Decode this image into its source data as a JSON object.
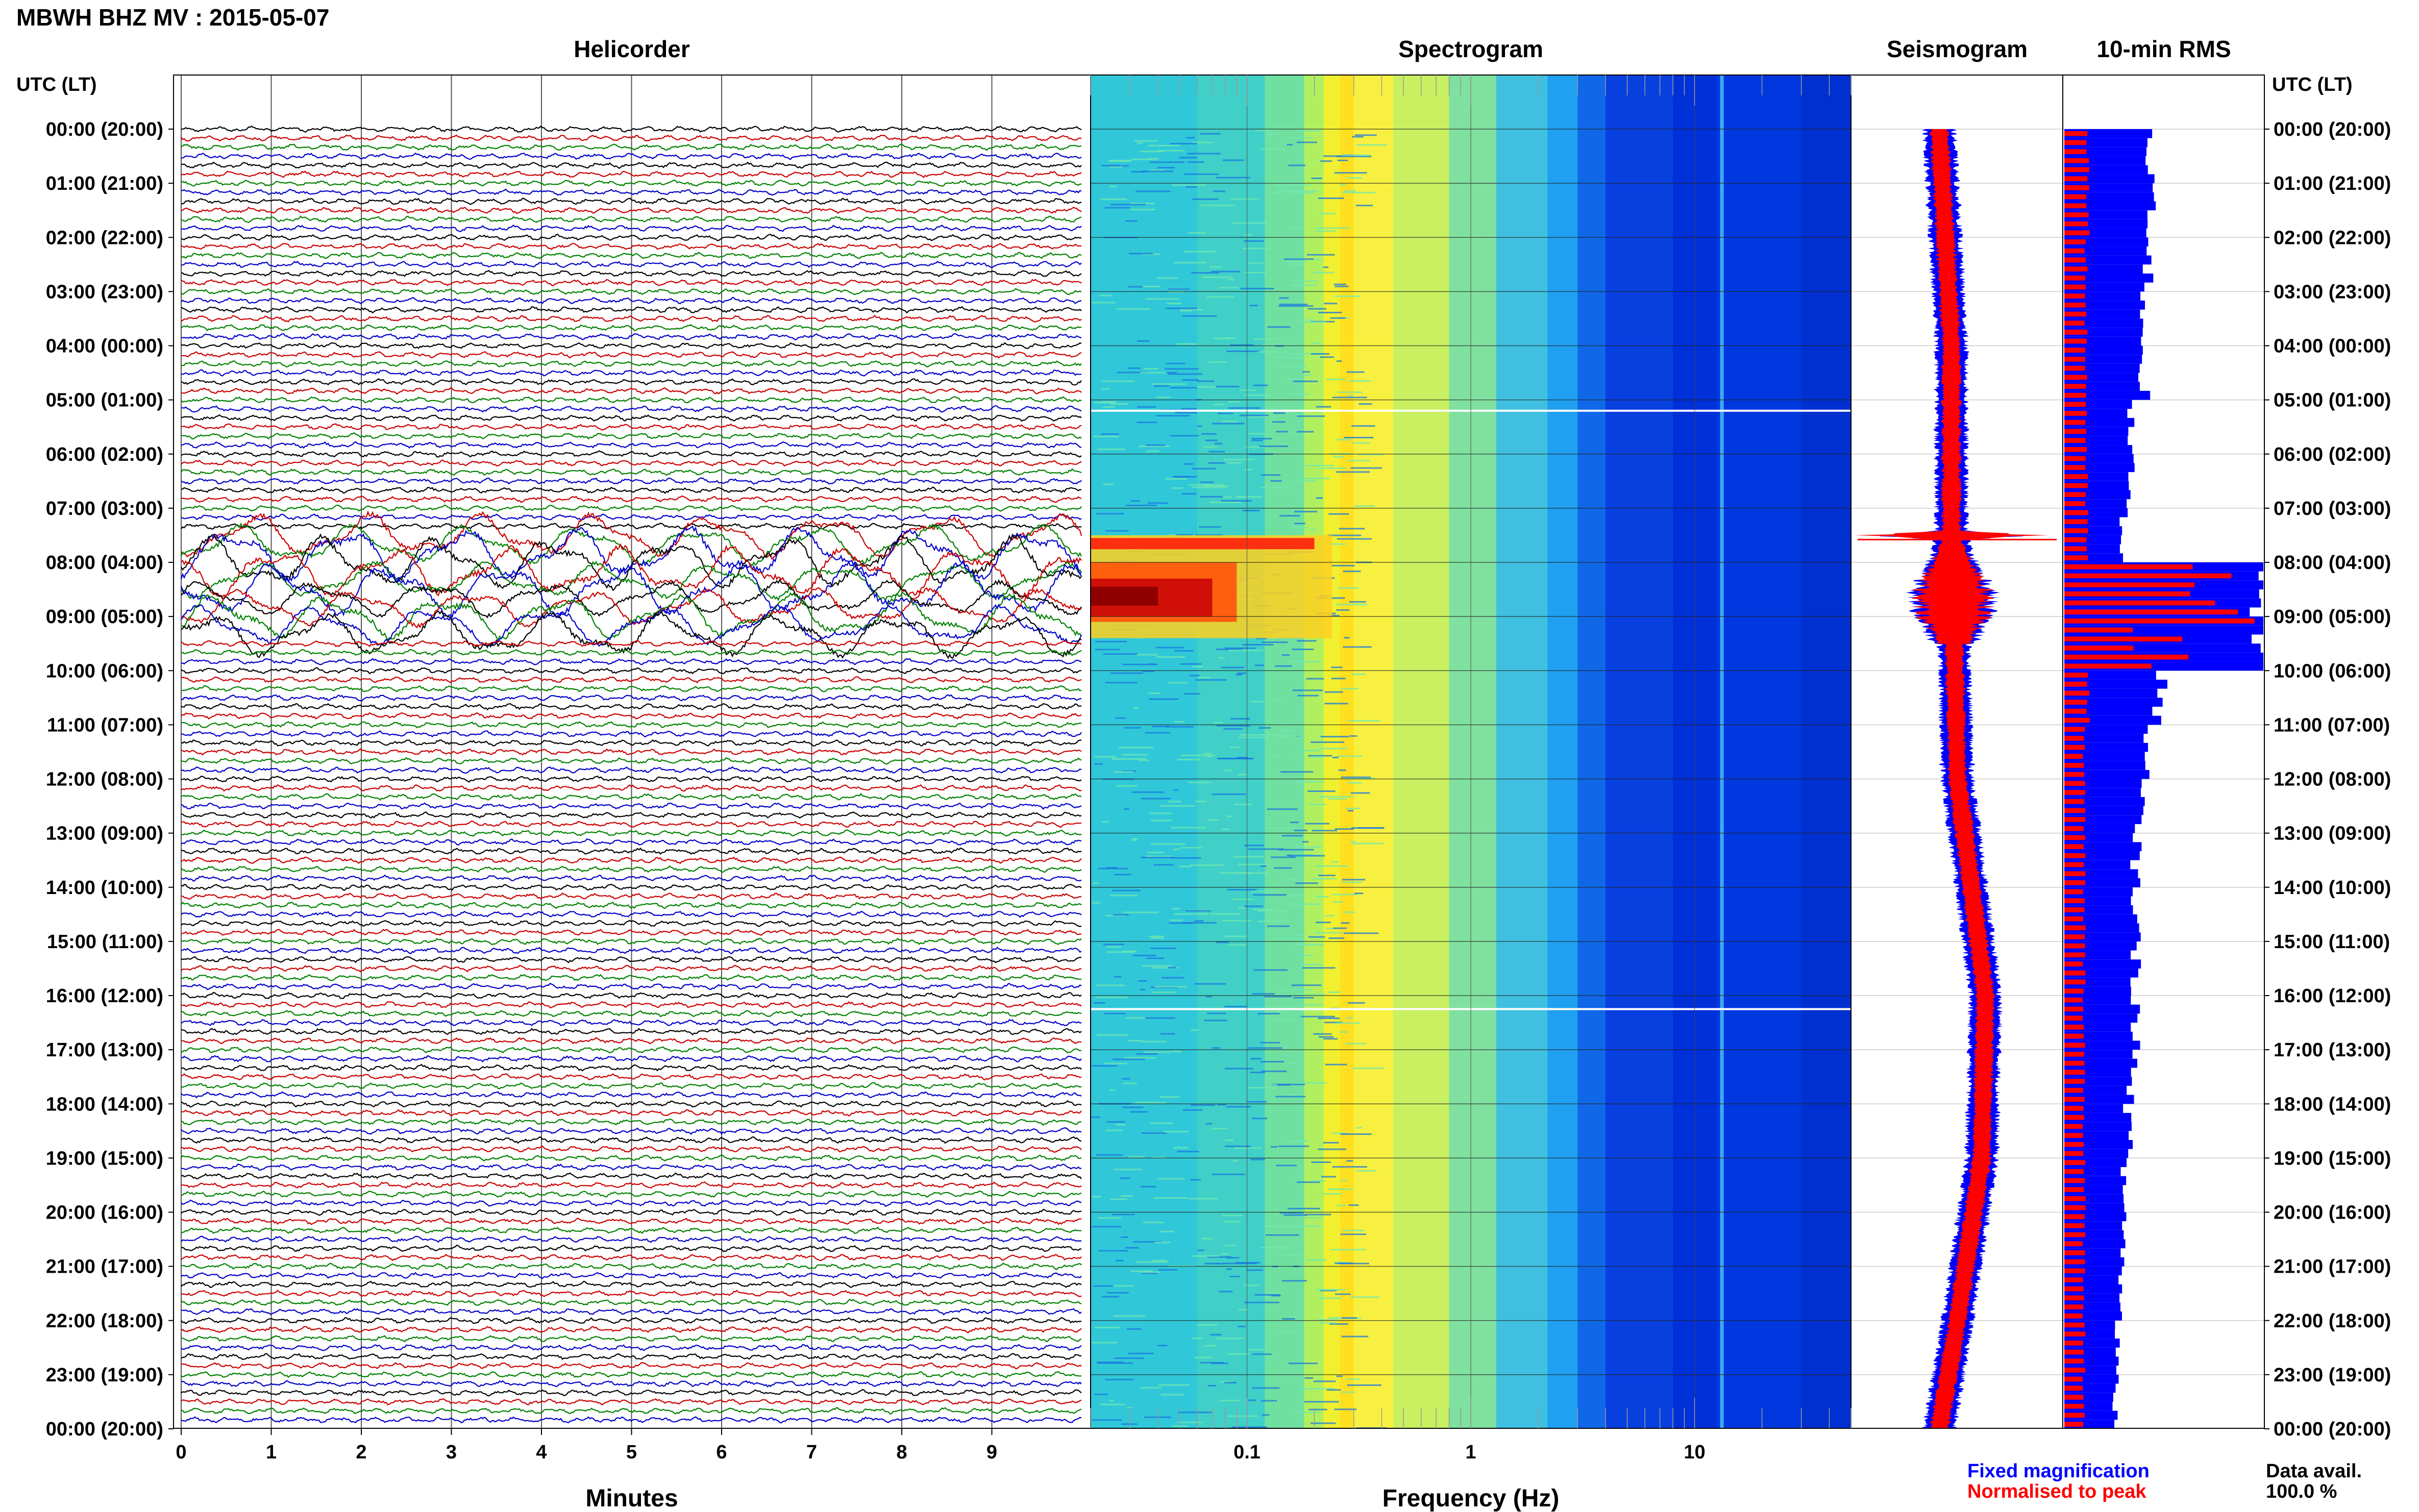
{
  "header": {
    "title": "MBWH BHZ MV : 2015-05-07",
    "utc_label_left": "UTC (LT)",
    "utc_label_right": "UTC (LT)"
  },
  "panels": {
    "helicorder": "Helicorder",
    "spectrogram": "Spectrogram",
    "seismogram": "Seismogram",
    "rms": "10-min RMS"
  },
  "axes": {
    "minutes_label": "Minutes",
    "frequency_label": "Frequency (Hz)"
  },
  "legend": {
    "fixed": "Fixed magnification",
    "normalised": "Normalised to peak"
  },
  "data_avail": {
    "label": "Data avail.",
    "value": "100.0 %"
  },
  "colors": {
    "trace_cycle": [
      "#000000",
      "#cc0000",
      "#008000",
      "#0000cc"
    ],
    "fixed": "#0000ff",
    "normalised": "#ff0000"
  },
  "chart_data": [
    {
      "type": "line",
      "panel": "helicorder",
      "title": "Helicorder",
      "xlabel": "Minutes",
      "x_ticks": [
        "0",
        "1",
        "2",
        "3",
        "4",
        "5",
        "6",
        "7",
        "8",
        "9"
      ],
      "xlim": [
        0,
        10
      ],
      "rows_per_hour": 6,
      "hours_shown": 24,
      "y_tick_labels": [
        "00:00 (20:00)",
        "01:00 (21:00)",
        "02:00 (22:00)",
        "03:00 (23:00)",
        "04:00 (00:00)",
        "05:00 (01:00)",
        "06:00 (02:00)",
        "07:00 (03:00)",
        "08:00 (04:00)",
        "09:00 (05:00)",
        "10:00 (06:00)",
        "11:00 (07:00)",
        "12:00 (08:00)",
        "13:00 (09:00)",
        "14:00 (10:00)",
        "15:00 (11:00)",
        "16:00 (12:00)",
        "17:00 (13:00)",
        "18:00 (14:00)",
        "19:00 (15:00)",
        "20:00 (16:00)",
        "21:00 (17:00)",
        "22:00 (18:00)",
        "23:00 (19:00)",
        "00:00 (20:00)"
      ],
      "event_window_utc_hours": [
        7.5,
        9.4
      ]
    },
    {
      "type": "heatmap",
      "panel": "spectrogram",
      "title": "Spectrogram",
      "xlabel": "Frequency (Hz)",
      "x_scale": "log",
      "xlim": [
        0.02,
        50
      ],
      "x_ticks": [
        "0.1",
        "1",
        "10"
      ],
      "ridge_frequencies_hz": [
        0.25,
        13
      ],
      "event_low_freq_band_hz": [
        0.02,
        0.2
      ],
      "gaps_utc_hours": [
        5.2,
        16.25
      ]
    },
    {
      "type": "line",
      "panel": "seismogram",
      "title": "Seismogram",
      "series": [
        {
          "name": "Fixed magnification",
          "color": "#0000ff"
        },
        {
          "name": "Normalised to peak",
          "color": "#ff0000"
        }
      ],
      "drift_profile": [
        {
          "t": 0,
          "x": 0.0
        },
        {
          "t": 4,
          "x": 0.1
        },
        {
          "t": 7.4,
          "x": 0.1
        },
        {
          "t": 12,
          "x": 0.15
        },
        {
          "t": 16,
          "x": 0.38
        },
        {
          "t": 19,
          "x": 0.35
        },
        {
          "t": 22,
          "x": 0.15
        },
        {
          "t": 24,
          "x": 0.0
        }
      ],
      "spike_utc_hours": [
        7.5,
        8.9
      ]
    },
    {
      "type": "bar",
      "panel": "rms",
      "title": "10-min RMS",
      "orientation": "horizontal",
      "bin_minutes": 10,
      "series": [
        {
          "name": "Fixed magnification",
          "color": "#0000ff",
          "hourly_relative": [
            0.42,
            0.44,
            0.42,
            0.4,
            0.4,
            0.33,
            0.33,
            0.3,
            1.0,
            1.0,
            0.48,
            0.4,
            0.38,
            0.36,
            0.36,
            0.36,
            0.36,
            0.34,
            0.32,
            0.3,
            0.3,
            0.28,
            0.27,
            0.26
          ]
        },
        {
          "name": "Normalised to peak",
          "color": "#ff0000",
          "hourly_relative": [
            0.12,
            0.12,
            0.11,
            0.11,
            0.11,
            0.11,
            0.11,
            0.12,
            0.75,
            0.8,
            0.12,
            0.1,
            0.1,
            0.1,
            0.1,
            0.1,
            0.1,
            0.1,
            0.1,
            0.1,
            0.1,
            0.1,
            0.1,
            0.1
          ]
        }
      ]
    }
  ]
}
